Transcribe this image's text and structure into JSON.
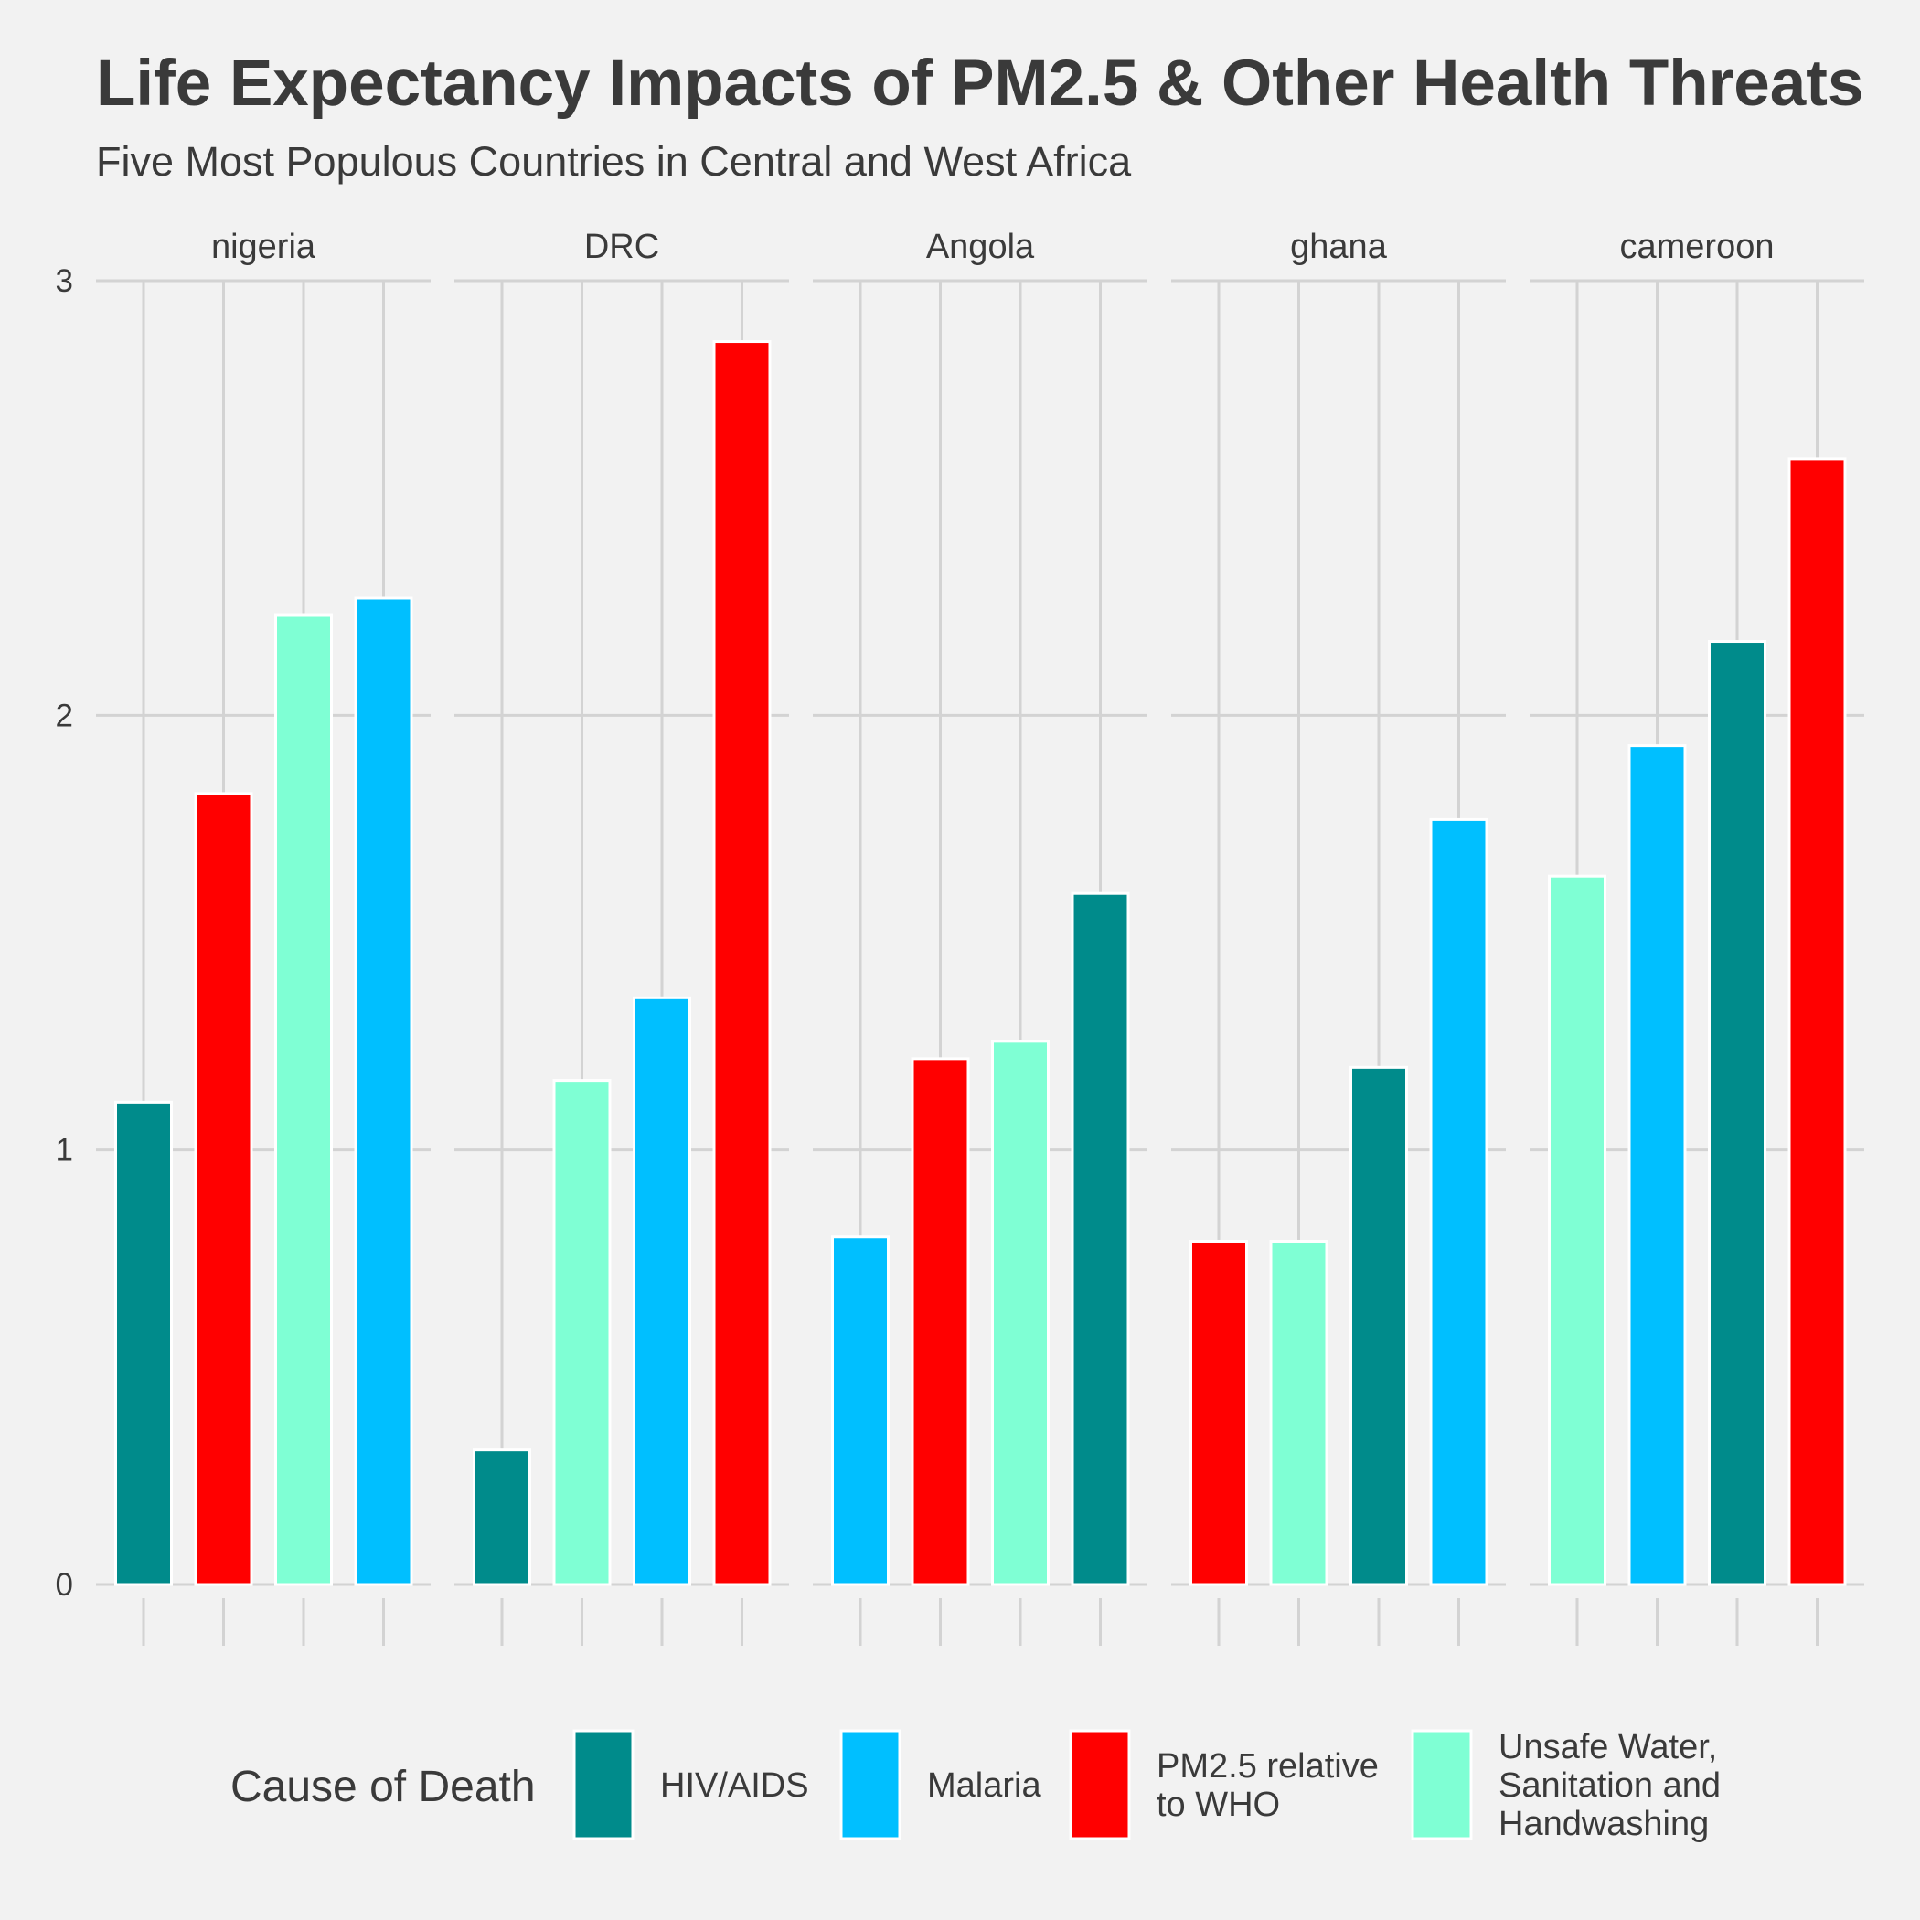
{
  "chart_data": {
    "type": "bar",
    "title": "Life Expectancy Impacts of PM2.5 & Other Health Threats",
    "subtitle": "Five Most Populous Countries in Central and West Africa",
    "xlabel": "",
    "ylabel": "",
    "ylim": [
      0,
      3
    ],
    "y_ticks": [
      "0",
      "1",
      "2",
      "3"
    ],
    "grid": true,
    "legend_position": "bottom",
    "legend_title": "Cause of Death",
    "series": [
      {
        "name": "HIV/AIDS",
        "color": "#008b8b"
      },
      {
        "name": "Malaria",
        "color": "#00bfff"
      },
      {
        "name": "PM2.5 relative to WHO",
        "color": "#ff0000",
        "label_lines": [
          "PM2.5 relative",
          "to WHO"
        ]
      },
      {
        "name": "Unsafe Water, Sanitation and Handwashing",
        "color": "#7fffd4",
        "label_lines": [
          "Unsafe Water,",
          "Sanitation and",
          "Handwashing"
        ]
      }
    ],
    "panels": [
      {
        "label": "nigeria",
        "bars": [
          {
            "series": "HIV/AIDS",
            "value": 1.11
          },
          {
            "series": "PM2.5 relative to WHO",
            "value": 1.82
          },
          {
            "series": "Unsafe Water, Sanitation and Handwashing",
            "value": 2.23
          },
          {
            "series": "Malaria",
            "value": 2.27
          }
        ]
      },
      {
        "label": "DRC",
        "bars": [
          {
            "series": "HIV/AIDS",
            "value": 0.31
          },
          {
            "series": "Unsafe Water, Sanitation and Handwashing",
            "value": 1.16
          },
          {
            "series": "Malaria",
            "value": 1.35
          },
          {
            "series": "PM2.5 relative to WHO",
            "value": 2.86
          }
        ]
      },
      {
        "label": "Angola",
        "bars": [
          {
            "series": "Malaria",
            "value": 0.8
          },
          {
            "series": "PM2.5 relative to WHO",
            "value": 1.21
          },
          {
            "series": "Unsafe Water, Sanitation and Handwashing",
            "value": 1.25
          },
          {
            "series": "HIV/AIDS",
            "value": 1.59
          }
        ]
      },
      {
        "label": "ghana",
        "bars": [
          {
            "series": "PM2.5 relative to WHO",
            "value": 0.79
          },
          {
            "series": "Unsafe Water, Sanitation and Handwashing",
            "value": 0.79
          },
          {
            "series": "HIV/AIDS",
            "value": 1.19
          },
          {
            "series": "Malaria",
            "value": 1.76
          }
        ]
      },
      {
        "label": "cameroon",
        "bars": [
          {
            "series": "Unsafe Water, Sanitation and Handwashing",
            "value": 1.63
          },
          {
            "series": "Malaria",
            "value": 1.93
          },
          {
            "series": "HIV/AIDS",
            "value": 2.17
          },
          {
            "series": "PM2.5 relative to WHO",
            "value": 2.59
          }
        ]
      }
    ]
  }
}
